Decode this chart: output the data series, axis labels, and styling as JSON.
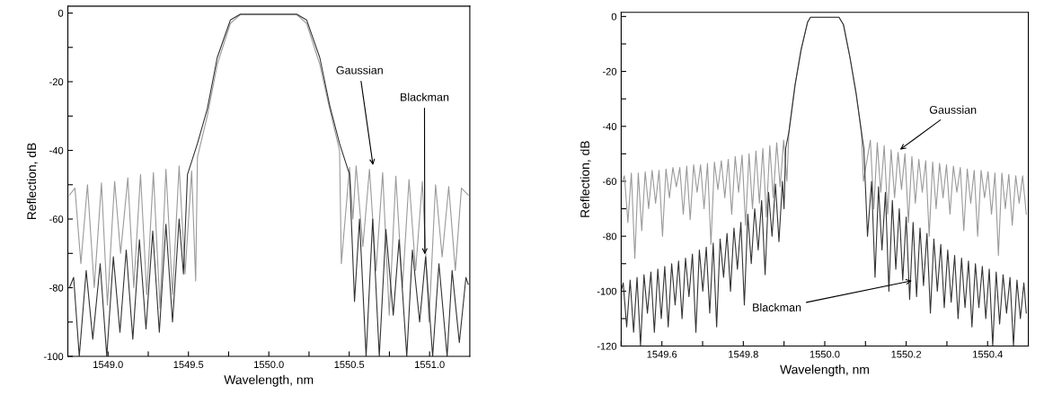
{
  "chart_data": [
    {
      "type": "line",
      "xlabel": "Wavelength, nm",
      "ylabel": "Reflection, dB",
      "xlim": [
        1548.75,
        1551.25
      ],
      "ylim": [
        -100,
        2
      ],
      "xticks": [
        {
          "value": 1549.0,
          "label": "1549.0"
        },
        {
          "value": 1549.25,
          "label": null
        },
        1549.5,
        {
          "value": 1549.75,
          "label": null
        },
        {
          "value": 1550.0,
          "label": "1550.0"
        },
        {
          "value": 1550.25,
          "label": null
        },
        1550.5,
        {
          "value": 1550.75,
          "label": null
        },
        {
          "value": 1551.0,
          "label": "1551.0"
        }
      ],
      "yticks": [
        -100,
        {
          "value": -90,
          "label": null
        },
        -80,
        {
          "value": -70,
          "label": null
        },
        -60,
        {
          "value": -50,
          "label": null
        },
        -40,
        {
          "value": -30,
          "label": null
        },
        -20,
        {
          "value": -10,
          "label": null
        },
        0
      ],
      "grid": false,
      "annotations": [
        {
          "text": "Gaussian",
          "x": 1550.65,
          "y": -45
        },
        {
          "text": "Blackman",
          "x": 1550.97,
          "y": -71
        }
      ],
      "series": [
        {
          "color": "#9a9a9a",
          "x": [
            1548.76,
            1548.794,
            1548.831,
            1548.872,
            1548.914,
            1548.959,
            1548.996,
            1549.041,
            1549.078,
            1549.123,
            1549.16,
            1549.202,
            1549.241,
            1549.282,
            1549.323,
            1549.36,
            1549.401,
            1549.442,
            1549.479,
            1549.52,
            1549.545,
            1549.556,
            1549.617,
            1549.679,
            1549.761,
            1549.823,
            1550.173,
            1550.235,
            1550.317,
            1550.379,
            1550.44,
            1550.451,
            1550.502,
            1550.523,
            1550.543,
            1550.585,
            1550.626,
            1550.667,
            1550.708,
            1550.749,
            1550.79,
            1550.831,
            1550.872,
            1550.913,
            1550.955,
            1550.996,
            1551.037,
            1551.078,
            1551.119,
            1551.16,
            1551.198,
            1551.24
          ],
          "values": [
            -53,
            -51,
            -73,
            -50,
            -80,
            -49.5,
            -85,
            -49,
            -70,
            -48,
            -80,
            -47,
            -82,
            -46.5,
            -86,
            -45.5,
            -82,
            -44.5,
            -76,
            -46,
            -78,
            -42,
            -30,
            -15,
            -3,
            -0.5,
            -0.5,
            -3,
            -15,
            -28,
            -40,
            -73,
            -45,
            -60,
            -44.5,
            -68,
            -45.5,
            -75,
            -46.5,
            -88,
            -47.5,
            -80,
            -48.5,
            -75,
            -49,
            -90,
            -50,
            -71,
            -50.5,
            -75,
            -51,
            -53
          ]
        },
        {
          "color": "#333333",
          "x": [
            1548.76,
            1548.786,
            1548.821,
            1548.864,
            1548.905,
            1548.951,
            1548.992,
            1549.033,
            1549.074,
            1549.113,
            1549.154,
            1549.195,
            1549.236,
            1549.278,
            1549.319,
            1549.36,
            1549.401,
            1549.442,
            1549.469,
            1549.494,
            1549.556,
            1549.617,
            1549.679,
            1549.761,
            1549.823,
            1550.173,
            1550.235,
            1550.317,
            1550.379,
            1550.44,
            1550.502,
            1550.533,
            1550.564,
            1550.605,
            1550.646,
            1550.687,
            1550.728,
            1550.774,
            1550.81,
            1550.858,
            1550.893,
            1550.938,
            1550.975,
            1551.019,
            1551.058,
            1551.109,
            1551.14,
            1551.185,
            1551.226,
            1551.24
          ],
          "values": [
            -80,
            -77,
            -100,
            -75,
            -95,
            -73,
            -100,
            -71,
            -93,
            -69,
            -95,
            -66,
            -92,
            -63.5,
            -93,
            -61.5,
            -90,
            -60,
            -76,
            -47,
            -38,
            -28,
            -13,
            -2,
            -0.3,
            -0.3,
            -2,
            -13,
            -27,
            -38,
            -47,
            -84,
            -60,
            -100,
            -60,
            -100,
            -63,
            -88,
            -66,
            -100,
            -69,
            -90,
            -71,
            -100,
            -73,
            -100,
            -75,
            -96,
            -77,
            -79
          ]
        }
      ]
    },
    {
      "type": "line",
      "xlabel": "Wavelength, nm",
      "ylabel": "Reflection, dB",
      "xlim": [
        1549.5,
        1550.5
      ],
      "ylim": [
        -120,
        1.5
      ],
      "xticks": [
        {
          "value": 1549.5,
          "label": null
        },
        1549.6,
        {
          "value": 1549.7,
          "label": null
        },
        1549.8,
        {
          "value": 1549.9,
          "label": null
        },
        {
          "value": 1550.0,
          "label": "1550.0"
        },
        {
          "value": 1550.1,
          "label": null
        },
        1550.2,
        {
          "value": 1550.3,
          "label": null
        },
        1550.4
      ],
      "yticks": [
        -120,
        {
          "value": -110,
          "label": null
        },
        -100,
        {
          "value": -90,
          "label": null
        },
        -80,
        {
          "value": -70,
          "label": null
        },
        -60,
        {
          "value": -50,
          "label": null
        },
        -40,
        {
          "value": -30,
          "label": null
        },
        -20,
        {
          "value": -10,
          "label": null
        },
        0
      ],
      "grid": false,
      "annotations": [
        {
          "text": "Gaussian",
          "x": 1550.18,
          "y": -49
        },
        {
          "text": "Blackman",
          "x": 1550.22,
          "y": -96
        }
      ],
      "series": [
        {
          "color": "#9a9a9a",
          "x": [
            1549.503,
            1549.508,
            1549.5165,
            1549.525,
            1549.5335,
            1549.542,
            1549.5505,
            1549.559,
            1549.5675,
            1549.576,
            1549.5845,
            1549.593,
            1549.6015,
            1549.61,
            1549.6185,
            1549.627,
            1549.6355,
            1549.644,
            1549.6525,
            1549.661,
            1549.6695,
            1549.678,
            1549.6865,
            1549.695,
            1549.7035,
            1549.712,
            1549.7205,
            1549.729,
            1549.7375,
            1549.746,
            1549.7545,
            1549.763,
            1549.7715,
            1549.78,
            1549.7885,
            1549.797,
            1549.8055,
            1549.814,
            1549.8225,
            1549.831,
            1549.8395,
            1549.848,
            1549.8565,
            1549.865,
            1549.8735,
            1549.882,
            1549.8905,
            1549.899,
            1549.907,
            1549.912,
            1549.927,
            1549.942,
            1549.958,
            1549.965,
            1550.035,
            1550.046,
            1550.062,
            1550.077,
            1550.09,
            1550.095,
            1550.112,
            1550.1205,
            1550.129,
            1550.1375,
            1550.146,
            1550.1545,
            1550.163,
            1550.1715,
            1550.18,
            1550.1885,
            1550.197,
            1550.2055,
            1550.214,
            1550.2225,
            1550.231,
            1550.2395,
            1550.248,
            1550.2565,
            1550.265,
            1550.2735,
            1550.282,
            1550.2905,
            1550.299,
            1550.3075,
            1550.316,
            1550.3245,
            1550.333,
            1550.3415,
            1550.35,
            1550.3585,
            1550.367,
            1550.3755,
            1550.384,
            1550.3925,
            1550.401,
            1550.4095,
            1550.418,
            1550.4265,
            1550.435,
            1550.4435,
            1550.452,
            1550.4605,
            1550.469,
            1550.4775,
            1550.486,
            1550.495
          ],
          "values": [
            -60,
            -58,
            -75,
            -57,
            -88,
            -57,
            -78,
            -56.5,
            -70,
            -56,
            -68,
            -56,
            -80,
            -55.5,
            -66,
            -55,
            -62,
            -55,
            -72,
            -54.5,
            -74,
            -54,
            -64,
            -54,
            -70,
            -53.5,
            -83,
            -53,
            -63,
            -52.5,
            -66,
            -52,
            -72,
            -51,
            -64,
            -50.5,
            -76,
            -50,
            -70,
            -49,
            -68,
            -48,
            -73,
            -47,
            -66,
            -46,
            -62,
            -45,
            -60,
            -42,
            -25,
            -12,
            -2,
            -0.3,
            -0.3,
            -3,
            -15,
            -28,
            -42,
            -60,
            -45,
            -70,
            -46,
            -64,
            -47,
            -72,
            -48.5,
            -66,
            -49.5,
            -63,
            -50,
            -75,
            -51,
            -68,
            -52,
            -64,
            -52.5,
            -80,
            -53,
            -70,
            -53.5,
            -66,
            -54,
            -72,
            -54.5,
            -64,
            -55,
            -78,
            -55.5,
            -68,
            -56,
            -80,
            -56,
            -66,
            -56.5,
            -72,
            -57,
            -87,
            -57,
            -70,
            -57.5,
            -76,
            -58,
            -68,
            -58,
            -72
          ]
        },
        {
          "color": "#333333",
          "x": [
            1549.5,
            1549.505,
            1549.5135,
            1549.522,
            1549.5305,
            1549.539,
            1549.5475,
            1549.556,
            1549.5645,
            1549.573,
            1549.5815,
            1549.59,
            1549.5985,
            1549.607,
            1549.6155,
            1549.624,
            1549.6325,
            1549.641,
            1549.6495,
            1549.658,
            1549.6665,
            1549.675,
            1549.6835,
            1549.692,
            1549.7005,
            1549.709,
            1549.7175,
            1549.726,
            1549.7345,
            1549.743,
            1549.7515,
            1549.76,
            1549.7685,
            1549.777,
            1549.7855,
            1549.794,
            1549.8025,
            1549.811,
            1549.8195,
            1549.828,
            1549.8365,
            1549.845,
            1549.8535,
            1549.862,
            1549.8705,
            1549.879,
            1549.8875,
            1549.896,
            1549.9,
            1549.904,
            1549.912,
            1549.927,
            1549.942,
            1549.958,
            1549.965,
            1550.035,
            1550.046,
            1550.062,
            1550.077,
            1550.09,
            1550.096,
            1550.105,
            1550.115,
            1550.1235,
            1550.132,
            1550.1405,
            1550.149,
            1550.1575,
            1550.166,
            1550.1745,
            1550.183,
            1550.1915,
            1550.2,
            1550.2085,
            1550.217,
            1550.2255,
            1550.234,
            1550.2425,
            1550.251,
            1550.2595,
            1550.268,
            1550.2765,
            1550.285,
            1550.2935,
            1550.302,
            1550.3105,
            1550.319,
            1550.3275,
            1550.336,
            1550.3445,
            1550.353,
            1550.3615,
            1550.37,
            1550.3785,
            1550.387,
            1550.3955,
            1550.404,
            1550.4125,
            1550.421,
            1550.4295,
            1550.438,
            1550.4465,
            1550.455,
            1550.4635,
            1550.472,
            1550.4805,
            1550.489,
            1550.495
          ],
          "values": [
            -100,
            -97,
            -113,
            -96,
            -115,
            -95,
            -120,
            -94,
            -108,
            -93,
            -115,
            -92,
            -110,
            -91,
            -113,
            -90,
            -105,
            -89,
            -110,
            -88,
            -102,
            -86.5,
            -115,
            -85,
            -100,
            -84,
            -108,
            -82.5,
            -113,
            -81,
            -95,
            -79,
            -100,
            -77,
            -92,
            -75,
            -105,
            -72,
            -90,
            -70,
            -85,
            -67,
            -94,
            -64,
            -80,
            -61,
            -82,
            -60,
            -70,
            -48,
            -42,
            -25,
            -12,
            -2,
            -0.3,
            -0.3,
            -3,
            -15,
            -28,
            -42,
            -48,
            -80,
            -60,
            -95,
            -62,
            -85,
            -64,
            -100,
            -67,
            -92,
            -70,
            -96,
            -73,
            -103,
            -75,
            -102,
            -77,
            -98,
            -79,
            -108,
            -81,
            -100,
            -83,
            -106,
            -85,
            -104,
            -87,
            -110,
            -88,
            -106,
            -89,
            -113,
            -90,
            -106,
            -91,
            -110,
            -92,
            -120,
            -93,
            -112,
            -94,
            -108,
            -95,
            -120,
            -96,
            -110,
            -97,
            -108
          ]
        }
      ]
    }
  ]
}
